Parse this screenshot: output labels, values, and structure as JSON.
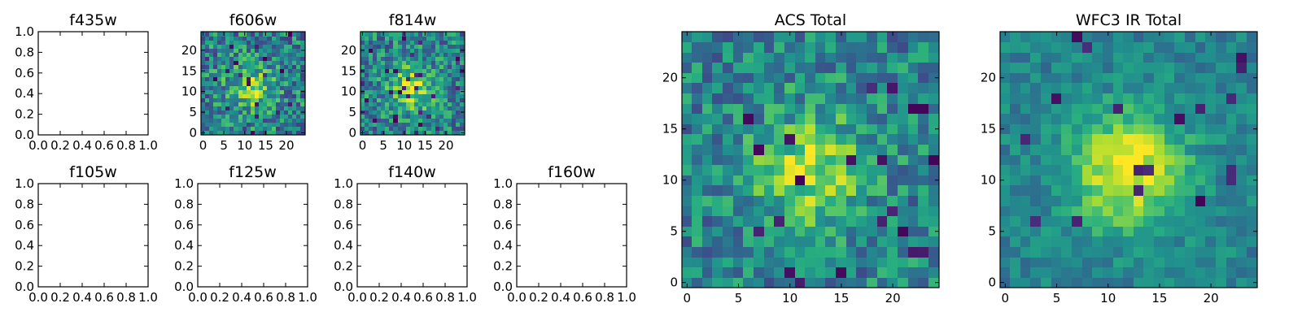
{
  "chart_data": [
    {
      "type": "empty",
      "title": "f435w",
      "xlim": [
        0,
        1
      ],
      "ylim": [
        0,
        1
      ],
      "xticks": [
        "0.0",
        "0.2",
        "0.4",
        "0.6",
        "0.8",
        "1.0"
      ],
      "yticks": [
        "0.0",
        "0.2",
        "0.4",
        "0.6",
        "0.8",
        "1.0"
      ]
    },
    {
      "type": "heatmap",
      "title": "f606w",
      "grid": 25,
      "xlim": [
        0,
        24
      ],
      "ylim": [
        0,
        24
      ],
      "xticks": [
        "0",
        "5",
        "10",
        "15",
        "20"
      ],
      "yticks": [
        "0",
        "5",
        "10",
        "15",
        "20"
      ],
      "colormap": "viridis",
      "peak": [
        12,
        11
      ],
      "peak_strength": 0.35,
      "noise": 0.55,
      "seed": 606
    },
    {
      "type": "heatmap",
      "title": "f814w",
      "grid": 25,
      "xlim": [
        0,
        24
      ],
      "ylim": [
        0,
        24
      ],
      "xticks": [
        "0",
        "5",
        "10",
        "15",
        "20"
      ],
      "yticks": [
        "0",
        "5",
        "10",
        "15",
        "20"
      ],
      "colormap": "viridis",
      "peak": [
        12,
        11
      ],
      "peak_strength": 0.4,
      "noise": 0.5,
      "seed": 814
    },
    {
      "type": "empty",
      "title": "f105w",
      "xlim": [
        0,
        1
      ],
      "ylim": [
        0,
        1
      ],
      "xticks": [
        "0.0",
        "0.2",
        "0.4",
        "0.6",
        "0.8",
        "1.0"
      ],
      "yticks": [
        "0.0",
        "0.2",
        "0.4",
        "0.6",
        "0.8",
        "1.0"
      ]
    },
    {
      "type": "empty",
      "title": "f125w",
      "xlim": [
        0,
        1
      ],
      "ylim": [
        0,
        1
      ],
      "xticks": [
        "0.0",
        "0.2",
        "0.4",
        "0.6",
        "0.8",
        "1.0"
      ],
      "yticks": [
        "0.0",
        "0.2",
        "0.4",
        "0.6",
        "0.8",
        "1.0"
      ]
    },
    {
      "type": "empty",
      "title": "f140w",
      "xlim": [
        0,
        1
      ],
      "ylim": [
        0,
        1
      ],
      "xticks": [
        "0.0",
        "0.2",
        "0.4",
        "0.6",
        "0.8",
        "1.0"
      ],
      "yticks": [
        "0.0",
        "0.2",
        "0.4",
        "0.6",
        "0.8",
        "1.0"
      ]
    },
    {
      "type": "empty",
      "title": "f160w",
      "xlim": [
        0,
        1
      ],
      "ylim": [
        0,
        1
      ],
      "xticks": [
        "0.0",
        "0.2",
        "0.4",
        "0.6",
        "0.8",
        "1.0"
      ],
      "yticks": [
        "0.0",
        "0.2",
        "0.4",
        "0.6",
        "0.8",
        "1.0"
      ]
    },
    {
      "type": "heatmap",
      "title": "ACS Total",
      "grid": 25,
      "xlim": [
        0,
        24
      ],
      "ylim": [
        0,
        24
      ],
      "xticks": [
        "0",
        "5",
        "10",
        "15",
        "20"
      ],
      "yticks": [
        "0",
        "5",
        "10",
        "15",
        "20"
      ],
      "colormap": "viridis",
      "peak": [
        12,
        11
      ],
      "peak_strength": 0.4,
      "noise": 0.45,
      "seed": 1001
    },
    {
      "type": "heatmap",
      "title": "WFC3 IR Total",
      "grid": 25,
      "xlim": [
        0,
        24
      ],
      "ylim": [
        0,
        24
      ],
      "xticks": [
        "0",
        "5",
        "10",
        "15",
        "20"
      ],
      "yticks": [
        "0",
        "5",
        "10",
        "15",
        "20"
      ],
      "colormap": "viridis",
      "peak": [
        12,
        11
      ],
      "peak_strength": 0.55,
      "noise": 0.25,
      "seed": 2002
    }
  ]
}
